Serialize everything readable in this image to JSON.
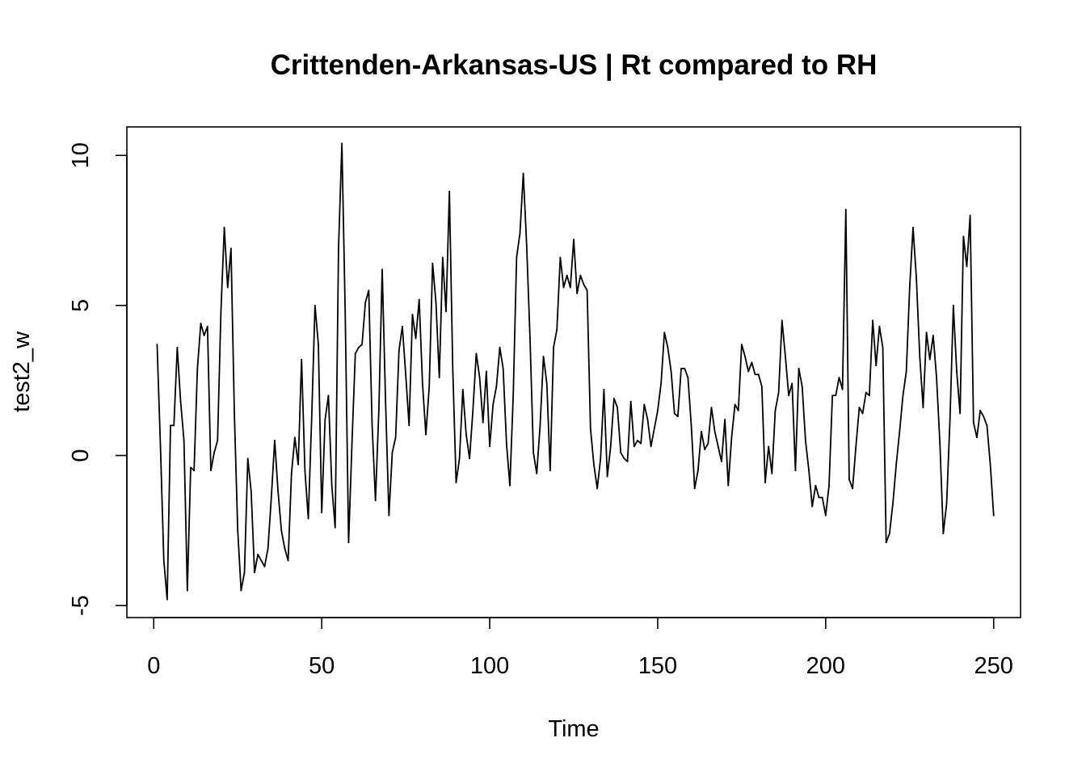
{
  "chart_data": {
    "type": "line",
    "title": "Crittenden-Arkansas-US | Rt compared to RH",
    "xlabel": "Time",
    "ylabel": "test2_w",
    "xlim": [
      -8,
      258
    ],
    "ylim": [
      -5.4,
      10.95
    ],
    "x_ticks": [
      0,
      50,
      100,
      150,
      200,
      250
    ],
    "y_ticks": [
      -5,
      0,
      5,
      10
    ],
    "x_tick_labels": [
      "0",
      "50",
      "100",
      "150",
      "200",
      "250"
    ],
    "y_tick_labels": [
      "-5",
      "0",
      "5",
      "10"
    ],
    "grid": false,
    "legend": "none",
    "line_color": "#000000",
    "series": [
      {
        "x_start": 1,
        "values": [
          3.7,
          0.3,
          -3.5,
          -4.8,
          1.0,
          1.0,
          3.6,
          1.8,
          0.5,
          -4.5,
          -0.4,
          -0.5,
          2.9,
          4.4,
          4.0,
          4.3,
          -0.5,
          0.1,
          0.5,
          4.8,
          7.6,
          5.6,
          6.9,
          1.4,
          -2.5,
          -4.5,
          -3.9,
          -0.1,
          -1.2,
          -3.9,
          -3.3,
          -3.5,
          -3.7,
          -3.1,
          -1.4,
          0.5,
          -1.2,
          -2.5,
          -3.1,
          -3.5,
          -0.6,
          0.6,
          -0.3,
          3.2,
          -0.5,
          -2.1,
          1.2,
          5.0,
          3.7,
          -1.9,
          1.2,
          2.0,
          -1.0,
          -2.4,
          6.9,
          10.4,
          4.7,
          -2.9,
          0.4,
          3.4,
          3.6,
          3.7,
          5.1,
          5.5,
          1.0,
          -1.5,
          1.5,
          6.2,
          1.8,
          -2.0,
          0.1,
          0.6,
          3.5,
          4.3,
          2.7,
          1.0,
          4.7,
          3.9,
          5.2,
          2.4,
          0.7,
          2.3,
          6.4,
          5.1,
          2.6,
          6.6,
          4.8,
          8.8,
          2.9,
          -0.9,
          -0.1,
          2.2,
          0.7,
          -0.1,
          1.5,
          3.4,
          2.6,
          1.1,
          2.8,
          0.3,
          1.7,
          2.3,
          3.6,
          2.9,
          0.4,
          -1.0,
          2.0,
          6.6,
          7.4,
          9.4,
          7.0,
          3.9,
          0.1,
          -0.6,
          1.0,
          3.3,
          2.4,
          -0.5,
          3.6,
          4.2,
          6.6,
          5.6,
          6.0,
          5.6,
          7.2,
          5.4,
          6.0,
          5.7,
          5.5,
          0.9,
          -0.3,
          -1.1,
          -0.1,
          2.2,
          -0.7,
          0.3,
          1.9,
          1.6,
          0.1,
          -0.1,
          -0.2,
          1.8,
          0.3,
          0.5,
          0.4,
          1.7,
          1.2,
          0.3,
          0.9,
          1.5,
          2.4,
          4.1,
          3.6,
          2.8,
          1.4,
          1.3,
          2.9,
          2.9,
          2.6,
          1.0,
          -1.1,
          -0.5,
          0.8,
          0.2,
          0.4,
          1.6,
          0.8,
          0.3,
          -0.2,
          1.2,
          -1.0,
          0.6,
          1.7,
          1.5,
          3.7,
          3.3,
          2.8,
          3.1,
          2.7,
          2.7,
          2.3,
          -0.9,
          0.3,
          -0.6,
          1.5,
          2.1,
          4.5,
          3.3,
          2.0,
          2.4,
          -0.5,
          2.9,
          2.3,
          0.5,
          -0.5,
          -1.7,
          -1.0,
          -1.4,
          -1.4,
          -2.0,
          -1.0,
          2.0,
          2.0,
          2.6,
          2.2,
          8.2,
          -0.8,
          -1.1,
          0.3,
          1.6,
          1.4,
          2.1,
          2.0,
          4.5,
          3.0,
          4.3,
          3.6,
          -2.9,
          -2.6,
          -1.6,
          -0.3,
          0.8,
          2.0,
          2.8,
          5.6,
          7.6,
          5.9,
          3.3,
          1.6,
          4.1,
          3.2,
          4.0,
          2.6,
          0.4,
          -2.6,
          -1.6,
          1.2,
          5.0,
          2.8,
          1.4,
          7.3,
          6.3,
          8.0,
          1.1,
          0.6,
          1.5,
          1.3,
          1.0,
          -0.3,
          -2.0
        ]
      }
    ]
  }
}
